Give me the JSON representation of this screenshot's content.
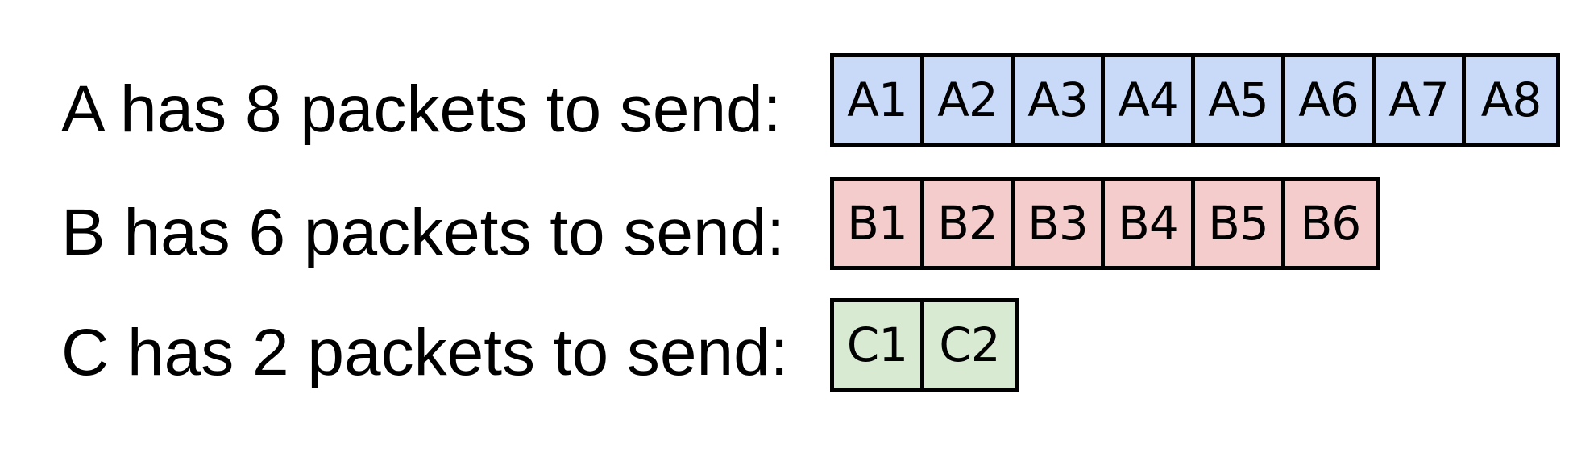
{
  "rows": [
    {
      "label": "A has 8 packets to send:",
      "color": "#c9daf8",
      "packets": [
        "A1",
        "A2",
        "A3",
        "A4",
        "A5",
        "A6",
        "A7",
        "A8"
      ]
    },
    {
      "label": "B has 6 packets to send:",
      "color": "#f4cccc",
      "packets": [
        "B1",
        "B2",
        "B3",
        "B4",
        "B5",
        "B6"
      ]
    },
    {
      "label": "C has 2 packets to send:",
      "color": "#d9ead3",
      "packets": [
        "C1",
        "C2"
      ]
    }
  ]
}
